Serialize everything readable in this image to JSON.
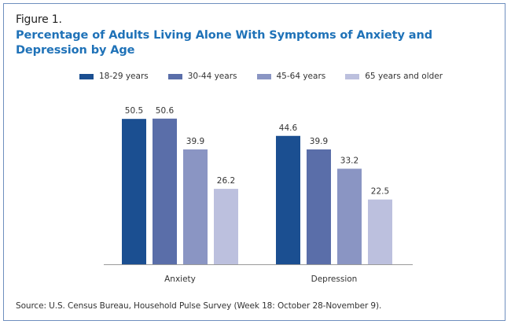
{
  "figure_label": "Figure 1.",
  "source": "Source: U.S. Census Bureau, Household Pulse Survey (Week 18: October 28-November 9).",
  "chart_data": {
    "type": "bar",
    "title": "Percentage of Adults Living Alone With Symptoms of Anxiety and Depression by Age",
    "xlabel": "",
    "ylabel": "",
    "categories": [
      "Anxiety",
      "Depression"
    ],
    "series": [
      {
        "name": "18-29 years",
        "color": "#1b4f91",
        "values": [
          50.5,
          44.6
        ]
      },
      {
        "name": "30-44 years",
        "color": "#5a6ea9",
        "values": [
          50.6,
          39.9
        ]
      },
      {
        "name": "45-64 years",
        "color": "#8a95c3",
        "values": [
          39.9,
          33.2
        ]
      },
      {
        "name": "65 years and older",
        "color": "#bcc0de",
        "values": [
          26.2,
          22.5
        ]
      }
    ],
    "ylim": [
      0,
      55
    ],
    "grid": false,
    "legend_position": "top-center",
    "data_labels": true
  }
}
